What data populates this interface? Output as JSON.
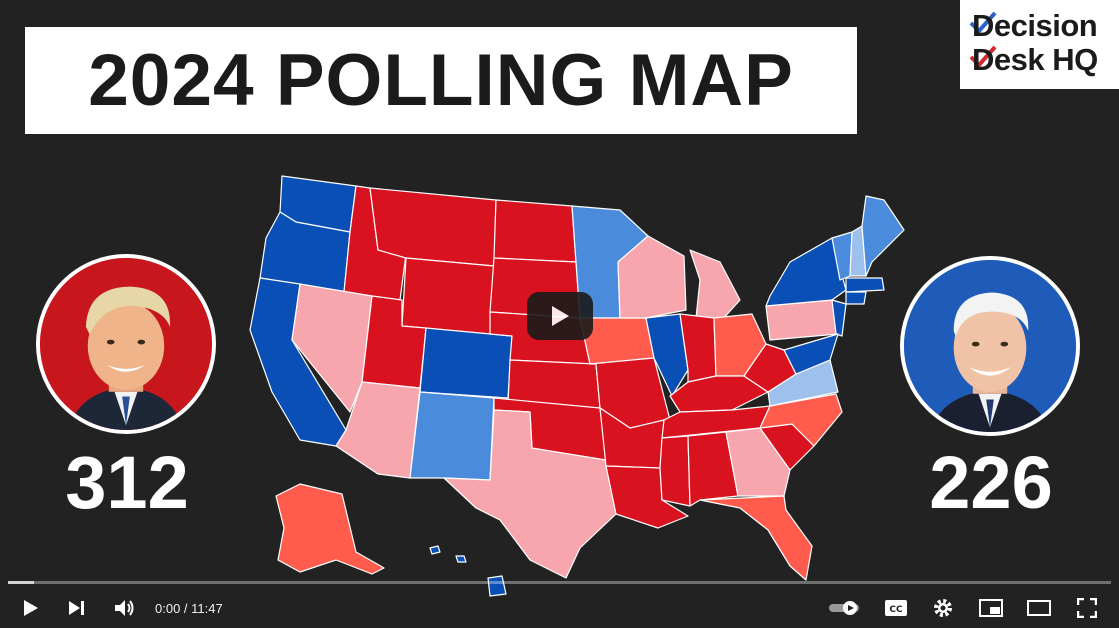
{
  "title": "2024 POLLING MAP",
  "logo": {
    "line1": "Decision",
    "line2": "Desk HQ"
  },
  "candidates": {
    "left": {
      "ev": "312",
      "bg": "#c8161d"
    },
    "right": {
      "ev": "226",
      "bg": "#1f5cb9"
    }
  },
  "colors": {
    "safe_r": "#d9121f",
    "likely_r": "#ff5c4d",
    "lean_r": "#f7a6ad",
    "safe_d": "#0a4fb5",
    "likely_d": "#4a8bdc",
    "lean_d": "#9dc0ec"
  },
  "player": {
    "time": "0:00 / 11:47",
    "progress_fraction": 0.024
  },
  "icons": [
    "play-icon",
    "next-icon",
    "volume-icon",
    "autoplay-toggle-icon",
    "captions-icon",
    "settings-icon",
    "miniplayer-icon",
    "theater-icon",
    "fullscreen-icon"
  ]
}
